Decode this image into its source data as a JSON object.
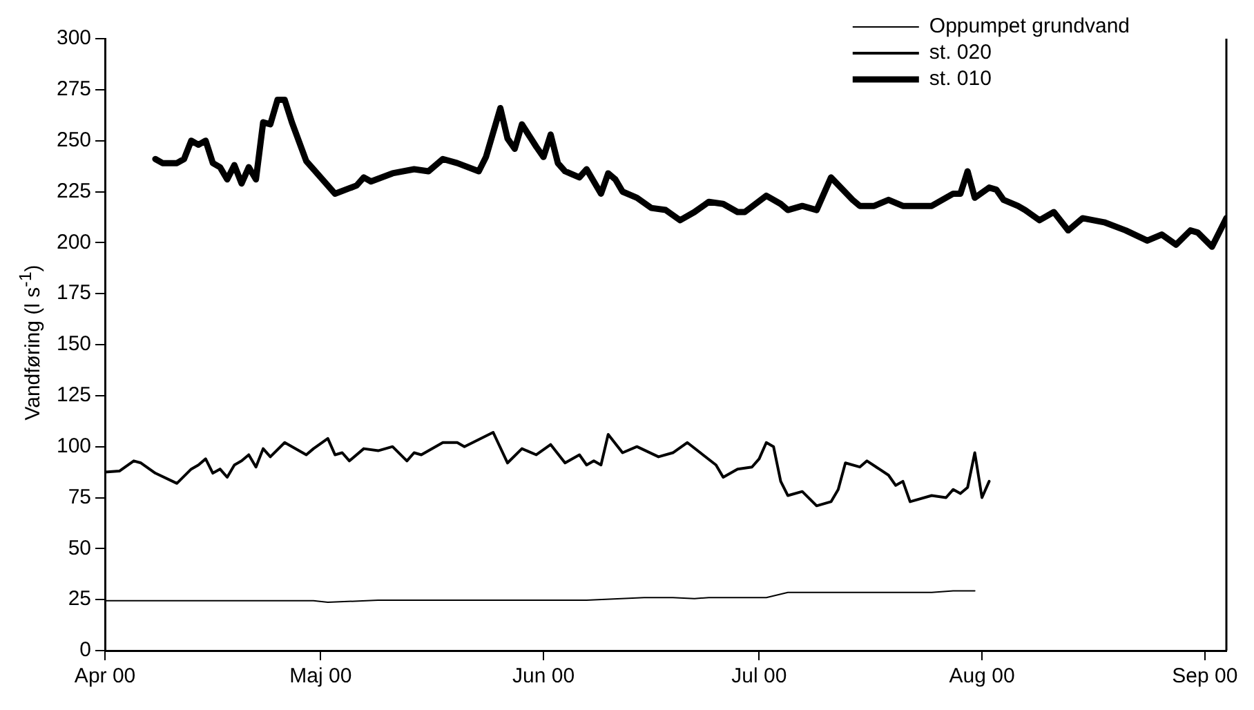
{
  "chart_data": {
    "type": "line",
    "ylabel": "Vandføring (l s$^{-1}$)",
    "xlim": [
      "2000-04-01",
      "2000-09-04"
    ],
    "xticks": [
      {
        "value": "2000-04-01",
        "label": "Apr 00"
      },
      {
        "value": "2000-05-01",
        "label": "Maj 00"
      },
      {
        "value": "2000-06-01",
        "label": "Jun 00"
      },
      {
        "value": "2000-07-01",
        "label": "Jul 00"
      },
      {
        "value": "2000-08-01",
        "label": "Aug 00"
      },
      {
        "value": "2000-09-01",
        "label": "Sep 00"
      }
    ],
    "ylim": [
      0,
      300
    ],
    "yticks": [
      0,
      25,
      50,
      75,
      100,
      125,
      150,
      175,
      200,
      225,
      250,
      275,
      300
    ],
    "legend": "top right",
    "marker": "none",
    "line_style": "solid",
    "series": [
      {
        "name": "Oppumpet grundvand",
        "color": "#000000",
        "x": [
          "2000-04-01",
          "2000-04-30",
          "2000-05-02",
          "2000-05-09",
          "2000-06-07",
          "2000-06-15",
          "2000-06-19",
          "2000-06-22",
          "2000-06-24",
          "2000-07-02",
          "2000-07-05",
          "2000-07-25",
          "2000-07-28",
          "2000-07-31"
        ],
        "values": [
          24.5,
          24.5,
          23.7,
          24.7,
          24.7,
          26,
          26,
          25.5,
          26,
          26,
          28.5,
          28.5,
          29.3,
          29.3
        ]
      },
      {
        "name": "st. 020",
        "color": "#000000",
        "x": [
          "2000-04-01",
          "2000-04-03",
          "2000-04-05",
          "2000-04-06",
          "2000-04-08",
          "2000-04-11",
          "2000-04-13",
          "2000-04-14",
          "2000-04-15",
          "2000-04-16",
          "2000-04-17",
          "2000-04-18",
          "2000-04-19",
          "2000-04-20",
          "2000-04-21",
          "2000-04-22",
          "2000-04-23",
          "2000-04-24",
          "2000-04-26",
          "2000-04-29",
          "2000-04-30",
          "2000-05-02",
          "2000-05-03",
          "2000-05-04",
          "2000-05-05",
          "2000-05-07",
          "2000-05-09",
          "2000-05-11",
          "2000-05-13",
          "2000-05-14",
          "2000-05-15",
          "2000-05-18",
          "2000-05-20",
          "2000-05-21",
          "2000-05-25",
          "2000-05-27",
          "2000-05-29",
          "2000-05-31",
          "2000-06-02",
          "2000-06-04",
          "2000-06-06",
          "2000-06-07",
          "2000-06-08",
          "2000-06-09",
          "2000-06-10",
          "2000-06-12",
          "2000-06-14",
          "2000-06-17",
          "2000-06-19",
          "2000-06-21",
          "2000-06-25",
          "2000-06-26",
          "2000-06-28",
          "2000-06-30",
          "2000-07-01",
          "2000-07-02",
          "2000-07-03",
          "2000-07-04",
          "2000-07-05",
          "2000-07-07",
          "2000-07-09",
          "2000-07-11",
          "2000-07-12",
          "2000-07-13",
          "2000-07-15",
          "2000-07-16",
          "2000-07-19",
          "2000-07-20",
          "2000-07-21",
          "2000-07-22",
          "2000-07-25",
          "2000-07-27",
          "2000-07-28",
          "2000-07-29",
          "2000-07-30",
          "2000-07-31",
          "2000-08-01",
          "2000-08-02"
        ],
        "values": [
          87.5,
          88,
          93,
          92,
          87,
          82,
          89,
          91,
          94,
          87,
          89,
          85,
          91,
          93,
          96,
          90,
          99,
          95,
          102,
          96,
          99,
          104,
          96,
          97,
          93,
          99,
          98,
          100,
          93,
          97,
          96,
          102,
          102,
          100,
          107,
          92,
          99,
          96,
          101,
          92,
          96,
          91,
          93,
          91,
          106,
          97,
          100,
          95,
          97,
          102,
          91,
          85,
          89,
          90,
          94,
          102,
          100,
          83,
          76,
          78,
          71,
          73,
          79,
          92,
          90,
          93,
          86,
          81,
          83,
          73,
          76,
          75,
          79,
          77,
          80,
          97,
          75,
          83
        ]
      },
      {
        "name": "st. 010",
        "color": "#000000",
        "x": [
          "2000-04-08",
          "2000-04-09",
          "2000-04-11",
          "2000-04-12",
          "2000-04-13",
          "2000-04-14",
          "2000-04-15",
          "2000-04-16",
          "2000-04-17",
          "2000-04-18",
          "2000-04-19",
          "2000-04-20",
          "2000-04-21",
          "2000-04-22",
          "2000-04-23",
          "2000-04-24",
          "2000-04-25",
          "2000-04-26",
          "2000-04-27",
          "2000-04-29",
          "2000-04-30",
          "2000-05-03",
          "2000-05-06",
          "2000-05-07",
          "2000-05-08",
          "2000-05-11",
          "2000-05-14",
          "2000-05-16",
          "2000-05-18",
          "2000-05-20",
          "2000-05-23",
          "2000-05-24",
          "2000-05-26",
          "2000-05-27",
          "2000-05-28",
          "2000-05-29",
          "2000-05-31",
          "2000-06-01",
          "2000-06-02",
          "2000-06-03",
          "2000-06-04",
          "2000-06-06",
          "2000-06-07",
          "2000-06-09",
          "2000-06-10",
          "2000-06-11",
          "2000-06-12",
          "2000-06-14",
          "2000-06-16",
          "2000-06-18",
          "2000-06-20",
          "2000-06-22",
          "2000-06-24",
          "2000-06-26",
          "2000-06-28",
          "2000-06-29",
          "2000-07-02",
          "2000-07-04",
          "2000-07-05",
          "2000-07-07",
          "2000-07-09",
          "2000-07-11",
          "2000-07-14",
          "2000-07-15",
          "2000-07-17",
          "2000-07-19",
          "2000-07-21",
          "2000-07-23",
          "2000-07-25",
          "2000-07-28",
          "2000-07-29",
          "2000-07-30",
          "2000-07-31",
          "2000-08-02",
          "2000-08-03",
          "2000-08-04",
          "2000-08-06",
          "2000-08-07",
          "2000-08-09",
          "2000-08-11",
          "2000-08-13",
          "2000-08-15",
          "2000-08-18",
          "2000-08-21",
          "2000-08-24",
          "2000-08-26",
          "2000-08-28",
          "2000-08-30",
          "2000-08-31",
          "2000-09-02",
          "2000-09-04"
        ],
        "values": [
          241,
          239,
          239,
          241,
          250,
          248,
          250,
          239,
          237,
          231,
          238,
          229,
          237,
          231,
          259,
          258,
          270,
          270,
          259,
          240,
          236,
          224,
          228,
          232,
          230,
          234,
          236,
          235,
          241,
          239,
          235,
          242,
          266,
          251,
          246,
          258,
          247,
          242,
          253,
          239,
          235,
          232,
          236,
          224,
          234,
          231,
          225,
          222,
          217,
          216,
          211,
          215,
          220,
          219,
          215,
          215,
          223,
          219,
          216,
          218,
          216,
          232,
          221,
          218,
          218,
          221,
          218,
          218,
          218,
          224,
          224,
          235,
          222,
          227,
          226,
          221,
          218,
          216,
          211,
          215,
          206,
          212,
          210,
          206,
          201,
          204,
          199,
          206,
          205,
          198,
          212
        ]
      }
    ]
  }
}
